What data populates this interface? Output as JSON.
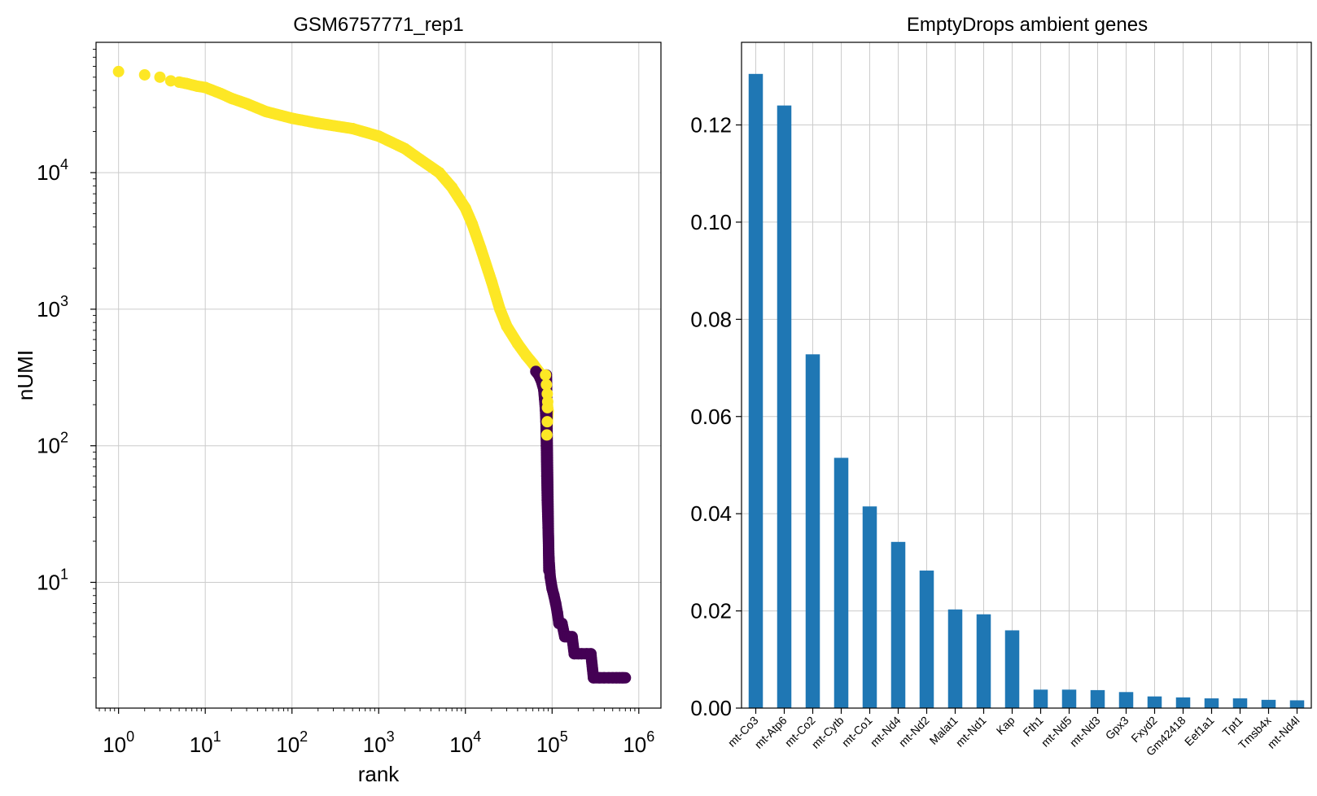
{
  "chart_data": [
    {
      "type": "scatter",
      "title": "GSM6757771_rep1",
      "xlabel": "rank",
      "ylabel": "nUMI",
      "xscale": "log",
      "yscale": "log",
      "xlim": [
        0.55,
        1800000
      ],
      "ylim": [
        1.2,
        90000
      ],
      "grid": true,
      "xticks": [
        {
          "value": 1,
          "base": "10",
          "exp": "0"
        },
        {
          "value": 10,
          "base": "10",
          "exp": "1"
        },
        {
          "value": 100,
          "base": "10",
          "exp": "2"
        },
        {
          "value": 1000,
          "base": "10",
          "exp": "3"
        },
        {
          "value": 10000,
          "base": "10",
          "exp": "4"
        },
        {
          "value": 100000,
          "base": "10",
          "exp": "5"
        },
        {
          "value": 1000000,
          "base": "10",
          "exp": "6"
        }
      ],
      "yticks": [
        {
          "value": 10,
          "base": "10",
          "exp": "1"
        },
        {
          "value": 100,
          "base": "10",
          "exp": "2"
        },
        {
          "value": 1000,
          "base": "10",
          "exp": "3"
        },
        {
          "value": 10000,
          "base": "10",
          "exp": "4"
        }
      ],
      "series": [
        {
          "color": "#fde725",
          "points": [
            [
              1,
              55000
            ],
            [
              2,
              52000
            ],
            [
              3,
              50000
            ],
            [
              4,
              47000
            ],
            [
              5,
              46000
            ],
            [
              6,
              45000
            ],
            [
              8,
              43000
            ],
            [
              10,
              42000
            ],
            [
              15,
              38000
            ],
            [
              20,
              35000
            ],
            [
              30,
              32000
            ],
            [
              50,
              28000
            ],
            [
              100,
              25000
            ],
            [
              200,
              23000
            ],
            [
              500,
              21000
            ],
            [
              1000,
              18500
            ],
            [
              2000,
              15000
            ],
            [
              3000,
              12500
            ],
            [
              5000,
              10000
            ],
            [
              7000,
              7800
            ],
            [
              10000,
              5500
            ],
            [
              12000,
              4200
            ],
            [
              15000,
              2800
            ],
            [
              20000,
              1600
            ],
            [
              25000,
              1000
            ],
            [
              30000,
              750
            ],
            [
              40000,
              560
            ],
            [
              50000,
              460
            ],
            [
              60000,
              400
            ],
            [
              70000,
              350
            ],
            [
              75000,
              320
            ],
            [
              80000,
              290
            ],
            [
              85000,
              230
            ],
            [
              88000,
              200
            ],
            [
              90000,
              180
            ],
            [
              88000,
              150
            ],
            [
              87000,
              120
            ]
          ]
        },
        {
          "color": "#440154",
          "points": [
            [
              65000,
              350
            ],
            [
              70000,
              330
            ],
            [
              75000,
              300
            ],
            [
              80000,
              260
            ],
            [
              82000,
              220
            ],
            [
              84000,
              180
            ],
            [
              85000,
              150
            ],
            [
              86000,
              100
            ],
            [
              87000,
              60
            ],
            [
              88000,
              40
            ],
            [
              90000,
              25
            ],
            [
              92000,
              15
            ],
            [
              95000,
              11
            ],
            [
              100000,
              9
            ],
            [
              105000,
              8
            ],
            [
              110000,
              7
            ],
            [
              115000,
              6
            ],
            [
              120000,
              5
            ],
            [
              130000,
              5
            ],
            [
              140000,
              4
            ],
            [
              150000,
              4
            ],
            [
              160000,
              4
            ],
            [
              170000,
              4
            ],
            [
              180000,
              3
            ],
            [
              200000,
              3
            ],
            [
              220000,
              3
            ],
            [
              250000,
              3
            ],
            [
              280000,
              3
            ],
            [
              300000,
              2
            ],
            [
              350000,
              2
            ],
            [
              400000,
              2
            ],
            [
              450000,
              2
            ],
            [
              500000,
              2
            ],
            [
              550000,
              2
            ],
            [
              600000,
              2
            ],
            [
              650000,
              2
            ],
            [
              700000,
              2
            ]
          ]
        }
      ]
    },
    {
      "type": "bar",
      "title": "EmptyDrops ambient genes",
      "xlabel": "",
      "ylabel": "",
      "ylim": [
        0,
        0.137
      ],
      "grid": true,
      "bar_color": "#1f77b4",
      "yticks": [
        "0.00",
        "0.02",
        "0.04",
        "0.06",
        "0.08",
        "0.10",
        "0.12"
      ],
      "categories": [
        "mt-Co3",
        "mt-Atp6",
        "mt-Co2",
        "mt-Cytb",
        "mt-Co1",
        "mt-Nd4",
        "mt-Nd2",
        "Malat1",
        "mt-Nd1",
        "Kap",
        "Fth1",
        "mt-Nd5",
        "mt-Nd3",
        "Gpx3",
        "Fxyd2",
        "Gm42418",
        "Eef1a1",
        "Tpt1",
        "Tmsb4x",
        "mt-Nd4l"
      ],
      "values": [
        0.1305,
        0.124,
        0.0728,
        0.0515,
        0.0415,
        0.0342,
        0.0283,
        0.0203,
        0.0193,
        0.016,
        0.0038,
        0.0038,
        0.0037,
        0.0033,
        0.0024,
        0.0022,
        0.002,
        0.002,
        0.0017,
        0.0016
      ]
    }
  ]
}
